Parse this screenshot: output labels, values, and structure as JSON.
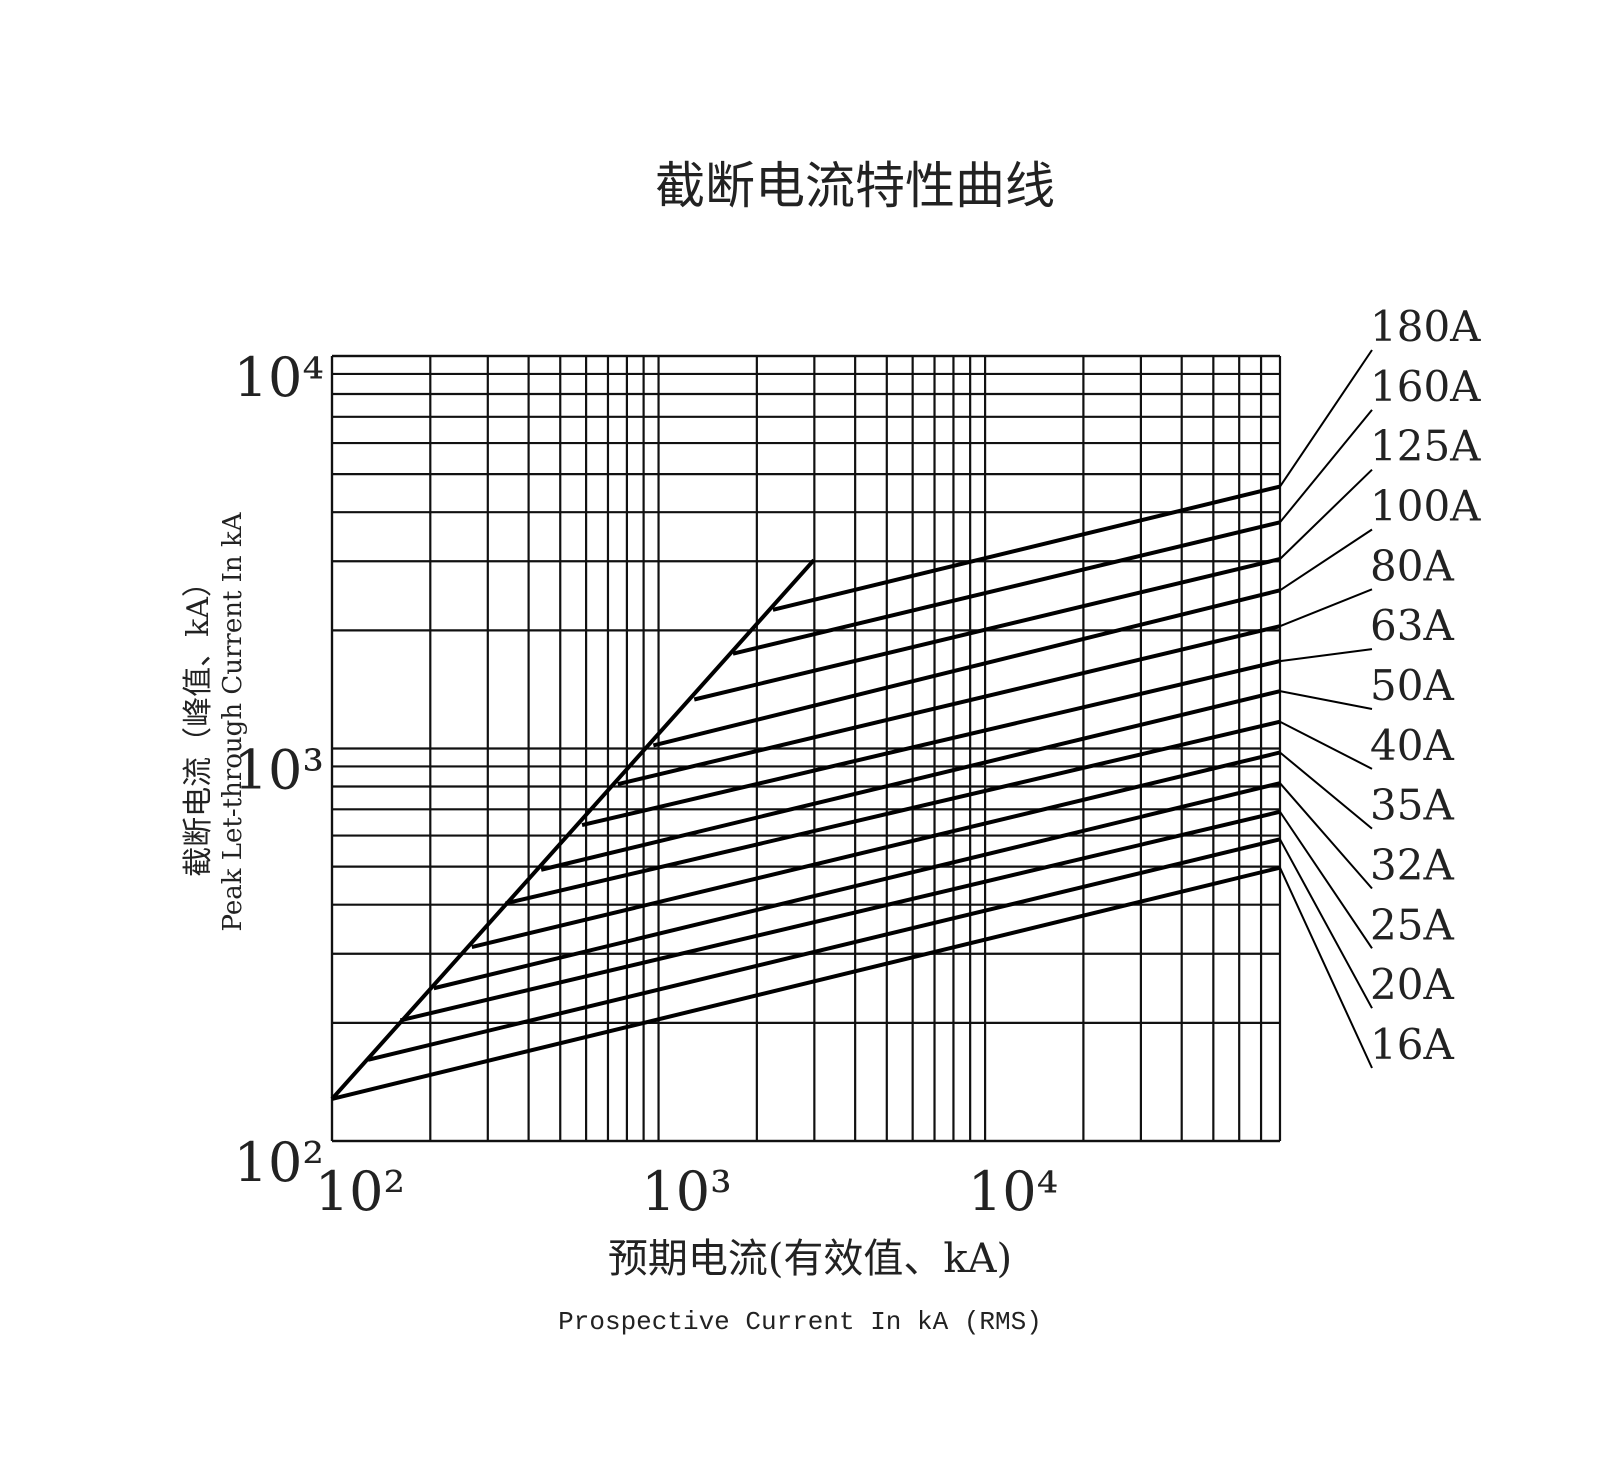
{
  "chart_data": {
    "type": "line",
    "title": "截断电流特性曲线",
    "x_label": "预期电流(有效值、kA)",
    "x_label_en": "Prospective Current In kA (RMS)",
    "y_label": "截断电流（峰值、kA）",
    "y_label_en": "Peak Let-through Current In kA",
    "x_log": true,
    "y_log": true,
    "grid": true,
    "line_color": "#000000",
    "xlim": [
      100,
      80000
    ],
    "ylim": [
      100,
      10000
    ],
    "xticks": [
      {
        "value": 100,
        "label": "10²"
      },
      {
        "value": 1000,
        "label": "10³"
      },
      {
        "value": 10000,
        "label": "10⁴"
      }
    ],
    "yticks": [
      {
        "value": 100,
        "label": "10²"
      },
      {
        "value": 1000,
        "label": "10³"
      },
      {
        "value": 10000,
        "label": "10⁴"
      }
    ],
    "x_minor_grid": [
      200,
      300,
      400,
      500,
      600,
      700,
      800,
      900,
      2000,
      3000,
      4000,
      5000,
      6000,
      7000,
      8000,
      9000,
      20000,
      30000,
      40000,
      50000,
      60000,
      70000
    ],
    "y_minor_grid": [
      200,
      300,
      400,
      500,
      600,
      700,
      800,
      900,
      2000,
      3000,
      4000,
      5000,
      6000,
      7000,
      8000,
      9000
    ],
    "cutoff": {
      "x": [
        100,
        2990
      ],
      "values": [
        128,
        3020
      ]
    },
    "series": [
      {
        "name": "180A",
        "x": [
          2240,
          80000
        ],
        "values": [
          2256,
          4650
        ]
      },
      {
        "name": "160A",
        "x": [
          1690,
          80000
        ],
        "values": [
          1744,
          3770
        ]
      },
      {
        "name": "125A",
        "x": [
          1286,
          80000
        ],
        "values": [
          1333,
          3040
        ]
      },
      {
        "name": "100A",
        "x": [
          964,
          80000
        ],
        "values": [
          1018,
          2530
        ]
      },
      {
        "name": "80A",
        "x": [
          750,
          80000
        ],
        "values": [
          811,
          2050
        ]
      },
      {
        "name": "63A",
        "x": [
          583,
          80000
        ],
        "values": [
          638,
          1670
        ]
      },
      {
        "name": "50A",
        "x": [
          437,
          80000
        ],
        "values": [
          491,
          1400
        ]
      },
      {
        "name": "40A",
        "x": [
          340,
          80000
        ],
        "values": [
          403,
          1170
        ]
      },
      {
        "name": "35A",
        "x": [
          268,
          80000
        ],
        "values": [
          312,
          977
        ]
      },
      {
        "name": "32A",
        "x": [
          205,
          80000
        ],
        "values": [
          245,
          816
        ]
      },
      {
        "name": "25A",
        "x": [
          162,
          80000
        ],
        "values": [
          203,
          690
        ]
      },
      {
        "name": "20A",
        "x": [
          129,
          80000
        ],
        "values": [
          161,
          587
        ]
      },
      {
        "name": "16A",
        "x": [
          100,
          80000
        ],
        "values": [
          128,
          497
        ]
      }
    ]
  }
}
